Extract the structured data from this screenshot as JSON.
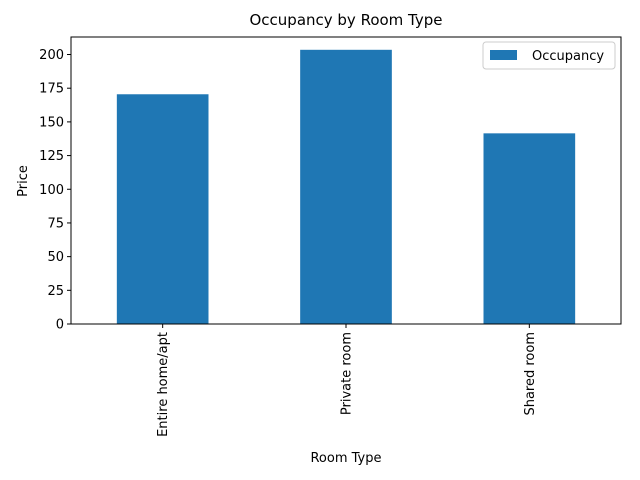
{
  "chart_data": {
    "type": "bar",
    "title": "Occupancy by Room Type",
    "xlabel": "Room Type",
    "ylabel": "Price",
    "categories": [
      "Entire home/apt",
      "Private room",
      "Shared room"
    ],
    "series": [
      {
        "name": "Occupancy",
        "values": [
          170.5,
          203.5,
          141.5
        ]
      }
    ],
    "ylim": [
      0,
      213
    ],
    "yticks": [
      0,
      25,
      50,
      75,
      100,
      125,
      150,
      175,
      200
    ],
    "xtick_rotation": "vertical",
    "grid": false,
    "legend_position": "top-right",
    "bar_color": "#1f77b4"
  }
}
